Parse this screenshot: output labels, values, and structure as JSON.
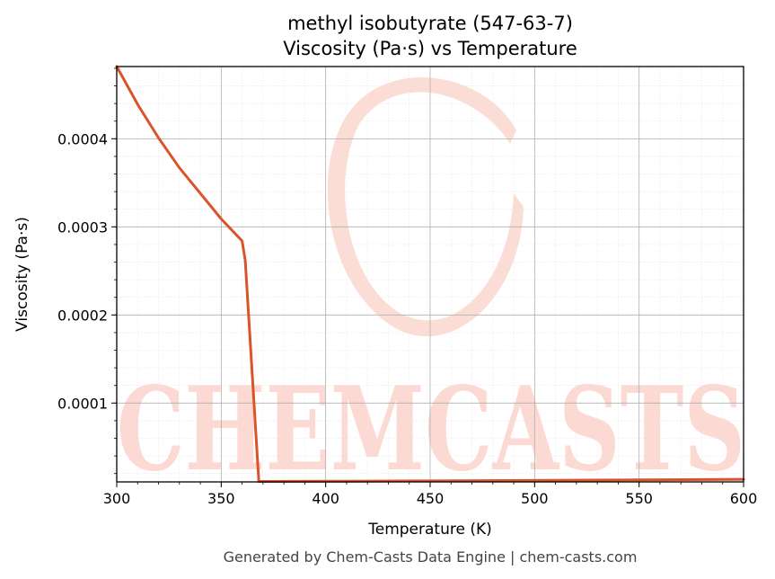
{
  "chart_data": {
    "type": "line",
    "title": "methyl isobutyrate (547-63-7)",
    "subtitle": "Viscosity (Pa·s) vs Temperature",
    "xlabel": "Temperature (K)",
    "ylabel": "Viscosity (Pa·s)",
    "xlim": [
      300,
      600
    ],
    "ylim": [
      1.05e-05,
      0.000482
    ],
    "xticks": [
      300,
      350,
      400,
      450,
      500,
      550,
      600
    ],
    "xtick_labels": [
      "300",
      "350",
      "400",
      "450",
      "500",
      "550",
      "600"
    ],
    "yticks": [
      0.0001,
      0.0002,
      0.0003,
      0.0004
    ],
    "ytick_labels": [
      "0.0001",
      "0.0002",
      "0.0003",
      "0.0004"
    ],
    "grid": true,
    "series": [
      {
        "color": "#d9542a",
        "x": [
          300,
          310,
          320,
          330,
          340,
          350,
          360,
          361.5,
          368,
          400,
          450,
          500,
          550,
          600
        ],
        "y": [
          0.000482,
          0.000439,
          0.000401,
          0.000367,
          0.000338,
          0.000309,
          0.000284,
          0.000262,
          1.1e-05,
          1.12e-05,
          1.16e-05,
          1.22e-05,
          1.28e-05,
          1.34e-05
        ]
      }
    ]
  },
  "watermark": {
    "text": "CHEMCASTS",
    "color": "#fcd9d2"
  },
  "footer": {
    "text": "Generated by Chem-Casts Data Engine | chem-casts.com"
  }
}
